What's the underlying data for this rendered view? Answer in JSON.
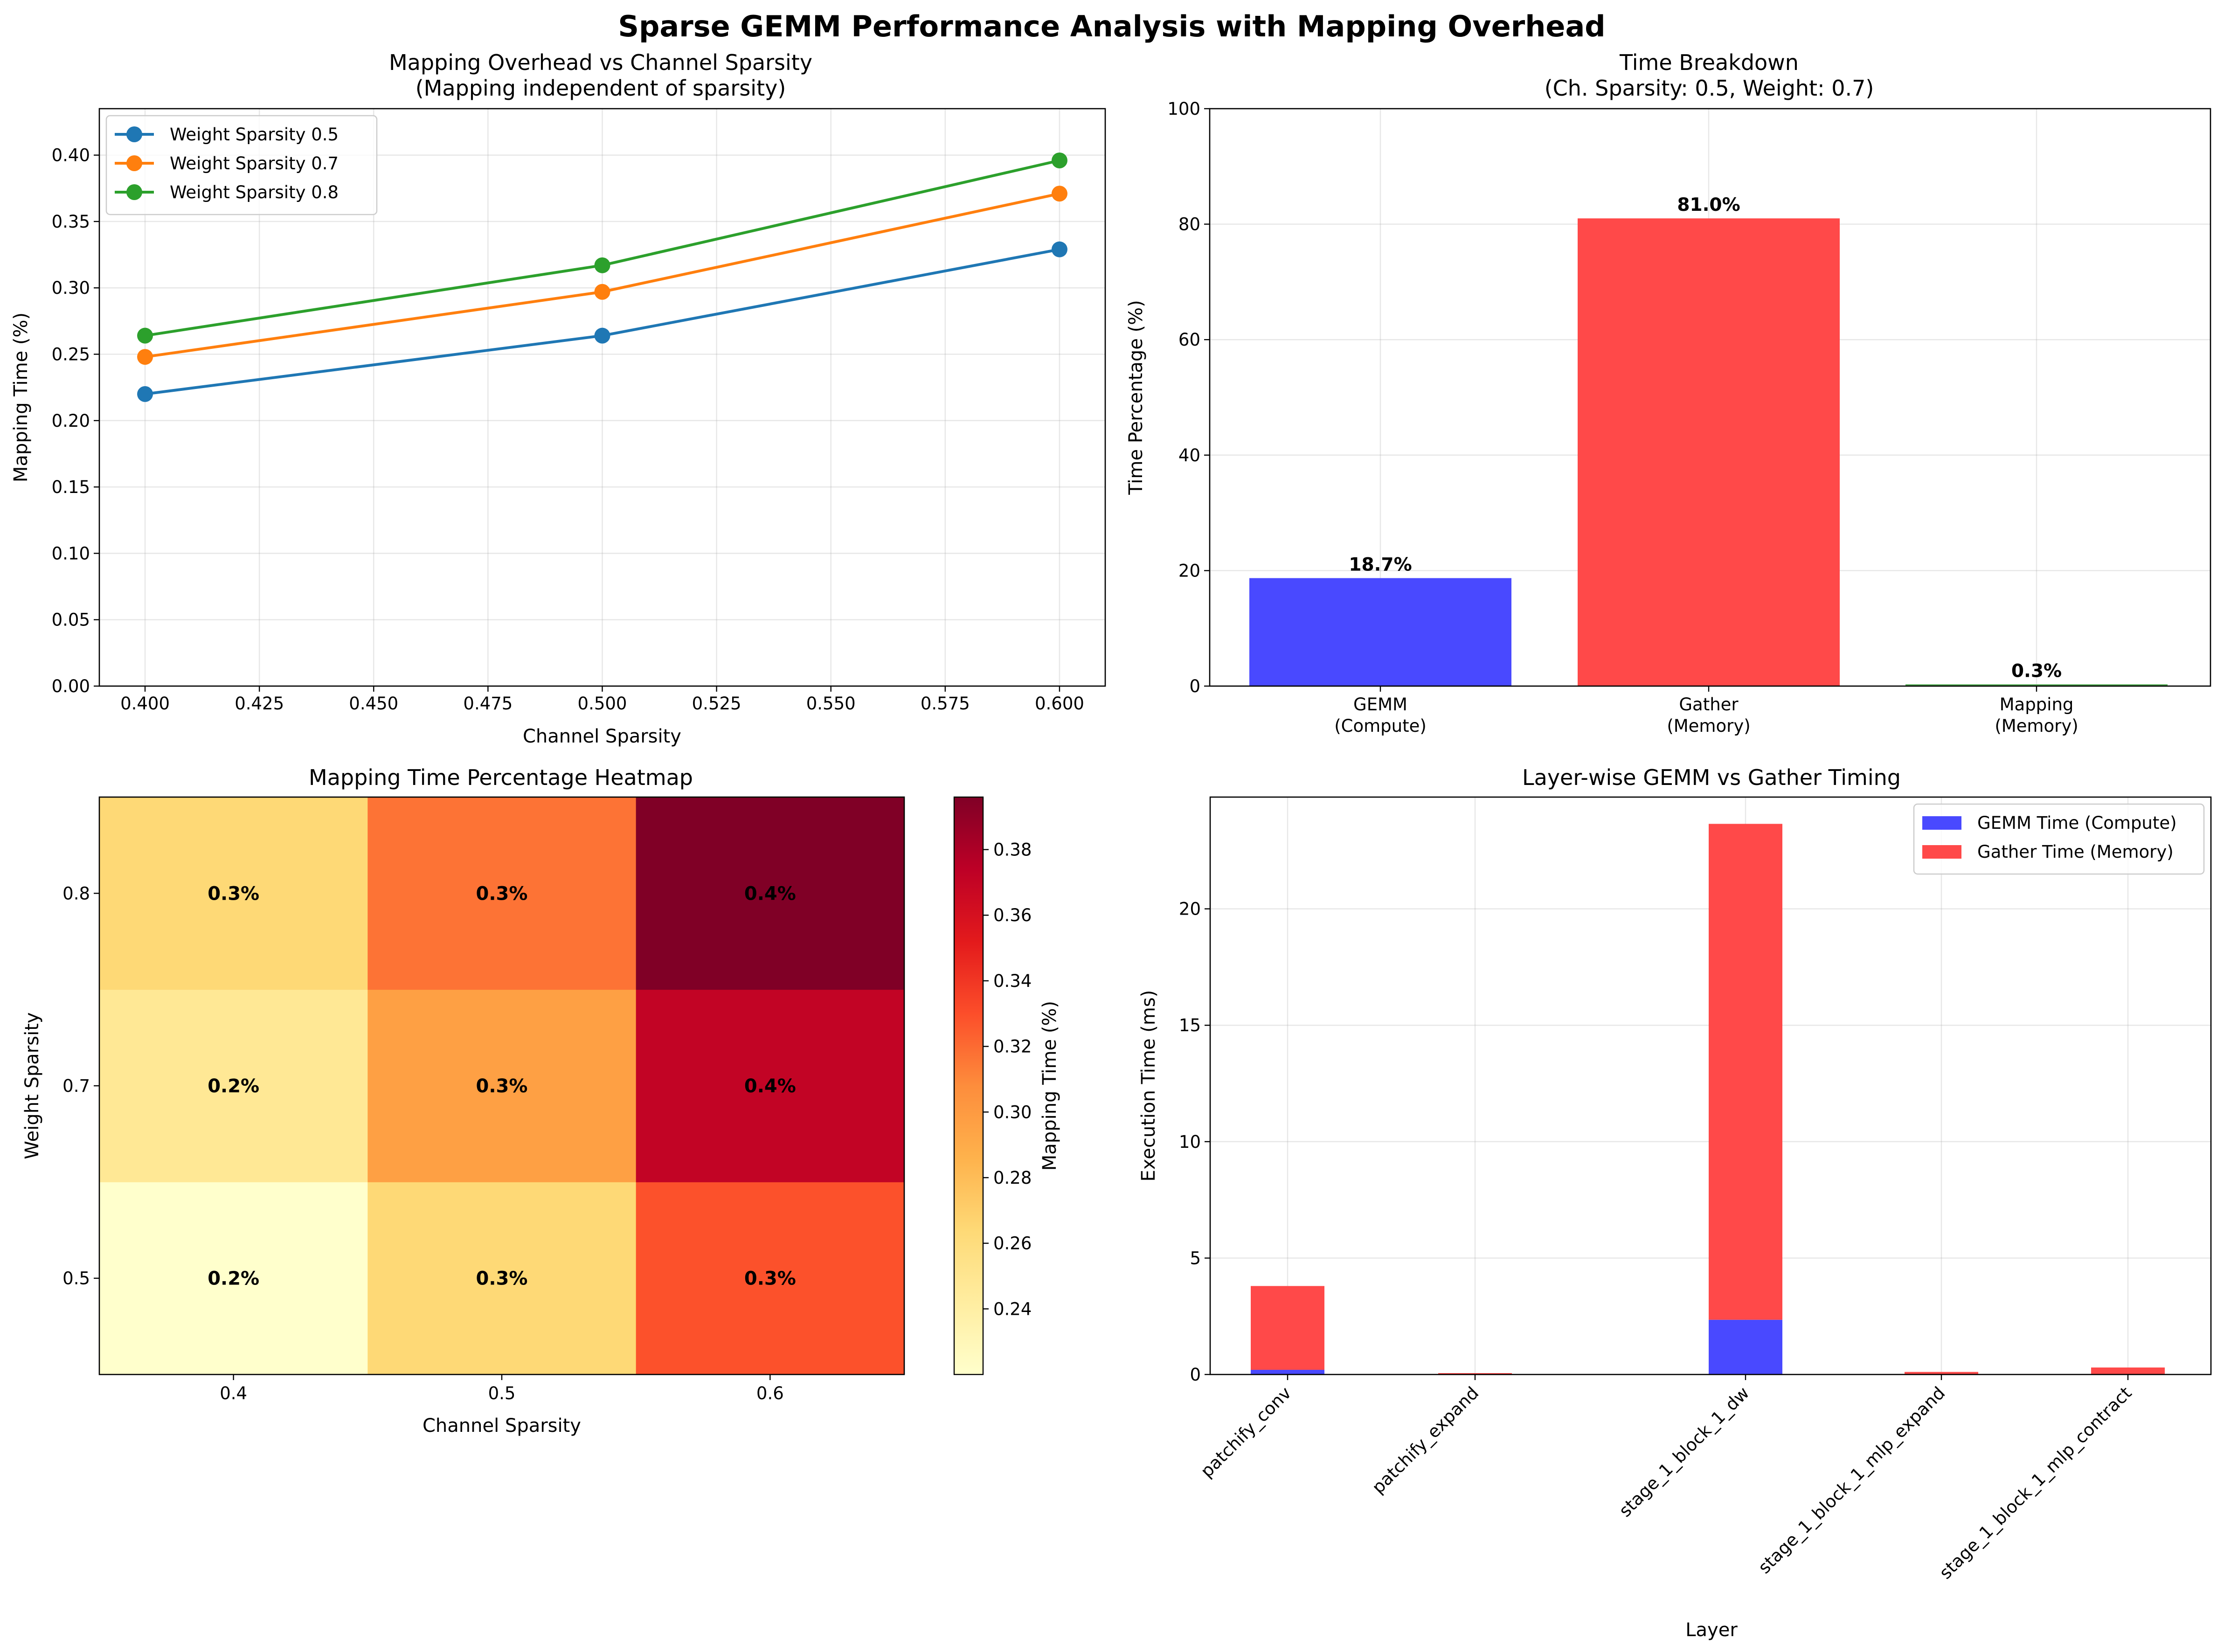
{
  "suptitle": "Sparse GEMM Performance Analysis with Mapping Overhead",
  "chart_data": [
    {
      "type": "line",
      "title": "Mapping Overhead vs Channel Sparsity",
      "subtitle": "(Mapping independent of sparsity)",
      "xlabel": "Channel Sparsity",
      "ylabel": "Mapping Time (%)",
      "x": [
        0.4,
        0.5,
        0.6
      ],
      "xlim": [
        0.39,
        0.61
      ],
      "ylim": [
        0.0,
        0.435
      ],
      "xticks": [
        "0.400",
        "0.425",
        "0.450",
        "0.475",
        "0.500",
        "0.525",
        "0.550",
        "0.575",
        "0.600"
      ],
      "yticks": [
        "0.00",
        "0.05",
        "0.10",
        "0.15",
        "0.20",
        "0.25",
        "0.30",
        "0.35",
        "0.40"
      ],
      "grid": true,
      "legend_position": "top-left",
      "series": [
        {
          "name": "Weight Sparsity 0.5",
          "color": "#1f77b4",
          "values": [
            0.22,
            0.264,
            0.329
          ]
        },
        {
          "name": "Weight Sparsity 0.7",
          "color": "#ff7f0e",
          "values": [
            0.248,
            0.297,
            0.371
          ]
        },
        {
          "name": "Weight Sparsity 0.8",
          "color": "#2ca02c",
          "values": [
            0.264,
            0.317,
            0.396
          ]
        }
      ]
    },
    {
      "type": "bar",
      "title": "Time Breakdown",
      "subtitle": "(Ch. Sparsity: 0.5, Weight: 0.7)",
      "xlabel": "",
      "ylabel": "Time Percentage (%)",
      "categories": [
        "GEMM\n(Compute)",
        "Gather\n(Memory)",
        "Mapping\n(Memory)"
      ],
      "values": [
        18.7,
        81.0,
        0.3
      ],
      "data_labels": [
        "18.7%",
        "81.0%",
        "0.3%"
      ],
      "colors": [
        "#4949ff",
        "#ff4949",
        "#49a449"
      ],
      "ylim": [
        0,
        100
      ],
      "yticks": [
        "0",
        "20",
        "40",
        "60",
        "80",
        "100"
      ],
      "grid": true
    },
    {
      "type": "heatmap",
      "title": "Mapping Time Percentage Heatmap",
      "xlabel": "Channel Sparsity",
      "ylabel": "Weight Sparsity",
      "x_categories": [
        "0.4",
        "0.5",
        "0.6"
      ],
      "y_categories": [
        "0.5",
        "0.7",
        "0.8"
      ],
      "values": [
        [
          0.22,
          0.264,
          0.329
        ],
        [
          0.248,
          0.297,
          0.371
        ],
        [
          0.264,
          0.317,
          0.396
        ]
      ],
      "cell_labels": [
        [
          "0.2%",
          "0.3%",
          "0.3%"
        ],
        [
          "0.2%",
          "0.3%",
          "0.4%"
        ],
        [
          "0.3%",
          "0.3%",
          "0.4%"
        ]
      ],
      "colormap": "YlOrRd",
      "colorbar_label": "Mapping Time (%)",
      "colorbar_range": [
        0.22,
        0.396
      ],
      "colorbar_ticks": [
        "0.24",
        "0.26",
        "0.28",
        "0.30",
        "0.32",
        "0.34",
        "0.36",
        "0.38"
      ]
    },
    {
      "type": "bar",
      "stacked": true,
      "title": "Layer-wise GEMM vs Gather Timing",
      "xlabel": "Layer",
      "ylabel": "Execution Time (ms)",
      "categories": [
        "patchify_conv",
        "patchify_expand",
        "stage_1_block_1_dw",
        "stage_1_block_1_mlp_expand",
        "stage_1_block_1_mlp_contract"
      ],
      "series": [
        {
          "name": "GEMM Time (Compute)",
          "color": "#4949ff",
          "values": [
            0.2,
            0.0,
            2.35,
            0.01,
            0.02
          ]
        },
        {
          "name": "Gather Time (Memory)",
          "color": "#ff4949",
          "values": [
            3.6,
            0.06,
            21.3,
            0.1,
            0.28
          ]
        }
      ],
      "ylim": [
        0,
        24.8
      ],
      "yticks": [
        "0",
        "5",
        "10",
        "15",
        "20"
      ],
      "grid": true,
      "legend_position": "top-right"
    }
  ]
}
